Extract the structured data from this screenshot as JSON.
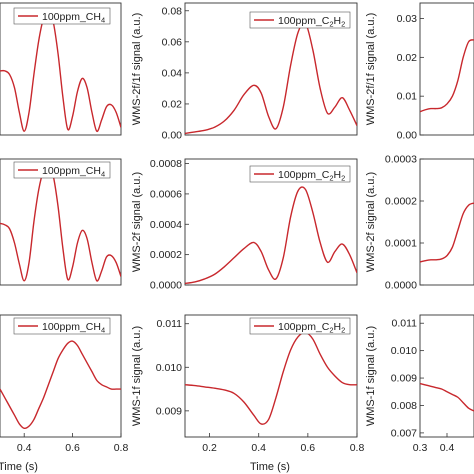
{
  "colors": {
    "series": "#c8282d",
    "axis": "#333333"
  },
  "panel_labels": {
    "wms_2f1f": "WMS-2f/1f signal (a.u.)",
    "wms_2f": "WMS-2f signal (a.u.)",
    "wms_1f": "WMS-1f signal (a.u.)",
    "time": "Time (s)"
  },
  "chart_data": [
    {
      "id": "p00",
      "type": "line",
      "title": "",
      "xlabel": "",
      "ylabel": "",
      "xlim": [
        0.3,
        0.8
      ],
      "ylim": [
        0,
        0.07
      ],
      "x_ticks": [],
      "y_ticks": [],
      "grid": false,
      "legend": {
        "text": "100ppm_CH",
        "sub": "4",
        "placement": "top"
      },
      "series": [
        {
          "name": "100ppm_CH4",
          "x": [
            0.3,
            0.32,
            0.34,
            0.36,
            0.38,
            0.4,
            0.42,
            0.44,
            0.46,
            0.48,
            0.5,
            0.52,
            0.54,
            0.56,
            0.58,
            0.6,
            0.62,
            0.64,
            0.66,
            0.68,
            0.7,
            0.72,
            0.74,
            0.76,
            0.78,
            0.8
          ],
          "values": [
            0.034,
            0.034,
            0.032,
            0.025,
            0.012,
            0.002,
            0.012,
            0.032,
            0.05,
            0.062,
            0.067,
            0.06,
            0.043,
            0.02,
            0.003,
            0.01,
            0.023,
            0.03,
            0.025,
            0.012,
            0.002,
            0.008,
            0.015,
            0.016,
            0.012,
            0.004
          ]
        }
      ]
    },
    {
      "id": "p01",
      "type": "line",
      "title": "",
      "xlabel": "",
      "ylabel": "WMS-2f/1f signal (a.u.)",
      "xlim": [
        0.1,
        0.8
      ],
      "ylim": [
        0,
        0.085
      ],
      "x_ticks": [],
      "y_ticks": [
        0,
        0.02,
        0.04,
        0.06,
        0.08
      ],
      "y_tick_labels": [
        "0.00",
        "0.02",
        "0.04",
        "0.06",
        "0.08"
      ],
      "grid": false,
      "legend": {
        "text": "100ppm_C",
        "sub": "2",
        "text2": "H",
        "sub2": "2",
        "placement": "top-right"
      },
      "series": [
        {
          "name": "100ppm_C2H2",
          "x": [
            0.1,
            0.14,
            0.18,
            0.22,
            0.26,
            0.3,
            0.34,
            0.38,
            0.41,
            0.44,
            0.47,
            0.5,
            0.53,
            0.56,
            0.59,
            0.62,
            0.65,
            0.68,
            0.71,
            0.74,
            0.77,
            0.8
          ],
          "values": [
            0.001,
            0.002,
            0.003,
            0.005,
            0.009,
            0.016,
            0.026,
            0.032,
            0.027,
            0.012,
            0.004,
            0.018,
            0.045,
            0.066,
            0.072,
            0.055,
            0.03,
            0.014,
            0.018,
            0.024,
            0.016,
            0.006
          ]
        }
      ]
    },
    {
      "id": "p02",
      "type": "line",
      "title": "",
      "xlabel": "",
      "ylabel": "WMS-2f/1f signal (a.u.)",
      "xlim": [
        0.3,
        0.5
      ],
      "ylim": [
        0,
        0.034
      ],
      "x_ticks": [],
      "y_ticks": [
        0,
        0.01,
        0.02,
        0.03
      ],
      "y_tick_labels": [
        "0.00",
        "0.01",
        "0.02",
        "0.03"
      ],
      "grid": false,
      "legend": null,
      "series": [
        {
          "name": "",
          "x": [
            0.3,
            0.32,
            0.34,
            0.36,
            0.38,
            0.4,
            0.42,
            0.44,
            0.46,
            0.48,
            0.5
          ],
          "values": [
            0.006,
            0.0065,
            0.0068,
            0.0068,
            0.007,
            0.008,
            0.01,
            0.014,
            0.02,
            0.024,
            0.0245
          ]
        }
      ]
    },
    {
      "id": "p10",
      "type": "line",
      "title": "",
      "xlabel": "",
      "ylabel": "",
      "xlim": [
        0.3,
        0.8
      ],
      "ylim": [
        0,
        0.0009
      ],
      "x_ticks": [],
      "y_ticks": [],
      "grid": false,
      "legend": {
        "text": "100ppm_CH",
        "sub": "4",
        "placement": "top"
      },
      "series": [
        {
          "name": "100ppm_CH4",
          "x": [
            0.3,
            0.32,
            0.34,
            0.36,
            0.38,
            0.4,
            0.42,
            0.44,
            0.46,
            0.48,
            0.5,
            0.52,
            0.54,
            0.56,
            0.58,
            0.6,
            0.62,
            0.64,
            0.66,
            0.68,
            0.7,
            0.72,
            0.74,
            0.76,
            0.78,
            0.8
          ],
          "values": [
            0.00044,
            0.00043,
            0.0004,
            0.0003,
            0.00015,
            3e-05,
            0.00016,
            0.00045,
            0.00068,
            0.00082,
            0.00087,
            0.00078,
            0.00056,
            0.00026,
            4e-05,
            0.00013,
            0.0003,
            0.00039,
            0.00033,
            0.00016,
            3e-05,
            0.0001,
            0.0002,
            0.00021,
            0.00016,
            6e-05
          ]
        }
      ]
    },
    {
      "id": "p11",
      "type": "line",
      "title": "",
      "xlabel": "",
      "ylabel": "WMS-2f signal (a.u.)",
      "xlim": [
        0.1,
        0.8
      ],
      "ylim": [
        0,
        0.00083
      ],
      "x_ticks": [],
      "y_ticks": [
        0,
        0.0002,
        0.0004,
        0.0006,
        0.0008
      ],
      "y_tick_labels": [
        "0.0000",
        "0.0002",
        "0.0004",
        "0.0006",
        "0.0008"
      ],
      "grid": false,
      "legend": {
        "text": "100ppm_C",
        "sub": "2",
        "text2": "H",
        "sub2": "2",
        "placement": "top-right"
      },
      "series": [
        {
          "name": "100ppm_C2H2",
          "x": [
            0.1,
            0.14,
            0.18,
            0.22,
            0.26,
            0.3,
            0.34,
            0.38,
            0.41,
            0.44,
            0.47,
            0.5,
            0.53,
            0.56,
            0.59,
            0.62,
            0.65,
            0.68,
            0.71,
            0.74,
            0.77,
            0.8
          ],
          "values": [
            1e-05,
            2e-05,
            4e-05,
            7e-05,
            0.00012,
            0.00018,
            0.00024,
            0.00028,
            0.00022,
            0.0001,
            4e-05,
            0.00018,
            0.00045,
            0.00062,
            0.00063,
            0.00048,
            0.00028,
            0.00015,
            0.00022,
            0.00027,
            0.0002,
            8e-05
          ]
        }
      ]
    },
    {
      "id": "p12",
      "type": "line",
      "title": "",
      "xlabel": "",
      "ylabel": "WMS-2f signal (a.u.)",
      "xlim": [
        0.3,
        0.5
      ],
      "ylim": [
        0,
        0.0003
      ],
      "x_ticks": [],
      "y_ticks": [
        0,
        0.0001,
        0.0002,
        0.0003
      ],
      "y_tick_labels": [
        "0.0000",
        "0.0001",
        "0.0002",
        "0.0003"
      ],
      "grid": false,
      "legend": null,
      "series": [
        {
          "name": "",
          "x": [
            0.3,
            0.32,
            0.34,
            0.36,
            0.38,
            0.4,
            0.42,
            0.44,
            0.46,
            0.48,
            0.5
          ],
          "values": [
            5.5e-05,
            5.8e-05,
            6e-05,
            6e-05,
            6.2e-05,
            7e-05,
            9e-05,
            0.00013,
            0.00017,
            0.00019,
            0.000195
          ]
        }
      ]
    },
    {
      "id": "p20",
      "type": "line",
      "title": "",
      "xlabel": "Time (s)",
      "ylabel": "",
      "xlim": [
        0.3,
        0.8
      ],
      "ylim": [
        0.0085,
        0.0113
      ],
      "x_ticks": [
        0.4,
        0.6,
        0.8
      ],
      "x_tick_labels": [
        "0.4",
        "0.6",
        "0.8"
      ],
      "y_ticks": [],
      "grid": false,
      "legend": {
        "text": "100ppm_CH",
        "sub": "4",
        "placement": "top-right"
      },
      "series": [
        {
          "name": "100ppm_CH4",
          "x": [
            0.3,
            0.32,
            0.34,
            0.36,
            0.38,
            0.4,
            0.42,
            0.44,
            0.46,
            0.48,
            0.5,
            0.52,
            0.54,
            0.56,
            0.58,
            0.6,
            0.62,
            0.64,
            0.66,
            0.68,
            0.7,
            0.72,
            0.74,
            0.76,
            0.78,
            0.8
          ],
          "values": [
            0.0096,
            0.0094,
            0.0092,
            0.009,
            0.0088,
            0.0087,
            0.00875,
            0.0089,
            0.00915,
            0.0094,
            0.0097,
            0.01,
            0.0103,
            0.0105,
            0.01065,
            0.0107,
            0.0106,
            0.0104,
            0.0102,
            0.01,
            0.0098,
            0.0097,
            0.00965,
            0.0096,
            0.0096,
            0.0096
          ]
        }
      ]
    },
    {
      "id": "p21",
      "type": "line",
      "title": "",
      "xlabel": "Time (s)",
      "ylabel": "WMS-1f signal (a.u.)",
      "xlim": [
        0.1,
        0.8
      ],
      "ylim": [
        0.0084,
        0.0112
      ],
      "x_ticks": [
        0.2,
        0.4,
        0.6,
        0.8
      ],
      "x_tick_labels": [
        "0.2",
        "0.4",
        "0.6",
        "0.8"
      ],
      "y_ticks": [
        0.009,
        0.01,
        0.011
      ],
      "y_tick_labels": [
        "0.009",
        "0.010",
        "0.011"
      ],
      "grid": false,
      "legend": {
        "text": "100ppm_C",
        "sub": "2",
        "text2": "H",
        "sub2": "2",
        "placement": "top-right"
      },
      "series": [
        {
          "name": "100ppm_C2H2",
          "x": [
            0.1,
            0.14,
            0.18,
            0.22,
            0.26,
            0.3,
            0.34,
            0.38,
            0.41,
            0.44,
            0.47,
            0.5,
            0.53,
            0.56,
            0.59,
            0.62,
            0.65,
            0.68,
            0.71,
            0.74,
            0.77,
            0.8
          ],
          "values": [
            0.0096,
            0.00958,
            0.00955,
            0.00952,
            0.00948,
            0.0094,
            0.0092,
            0.0089,
            0.0087,
            0.0088,
            0.0093,
            0.0099,
            0.0104,
            0.0107,
            0.0108,
            0.01065,
            0.0103,
            0.01,
            0.0098,
            0.00965,
            0.0096,
            0.0096
          ]
        }
      ]
    },
    {
      "id": "p22",
      "type": "line",
      "title": "",
      "xlabel": "",
      "ylabel": "WMS-1f signal (a.u.)",
      "xlim": [
        0.3,
        0.5
      ],
      "ylim": [
        0.00685,
        0.0113
      ],
      "x_ticks": [
        0.3,
        0.4
      ],
      "x_tick_labels": [
        "0.3",
        "0.4"
      ],
      "y_ticks": [
        0.007,
        0.008,
        0.009,
        0.01,
        0.011
      ],
      "y_tick_labels": [
        "0.007",
        "0.008",
        "0.009",
        "0.010",
        "0.011"
      ],
      "grid": false,
      "legend": null,
      "series": [
        {
          "name": "",
          "x": [
            0.3,
            0.32,
            0.34,
            0.36,
            0.38,
            0.4,
            0.42,
            0.44,
            0.46,
            0.48,
            0.5
          ],
          "values": [
            0.0088,
            0.00875,
            0.0087,
            0.00865,
            0.0086,
            0.0085,
            0.0084,
            0.0083,
            0.0081,
            0.0079,
            0.0078
          ]
        }
      ]
    }
  ]
}
